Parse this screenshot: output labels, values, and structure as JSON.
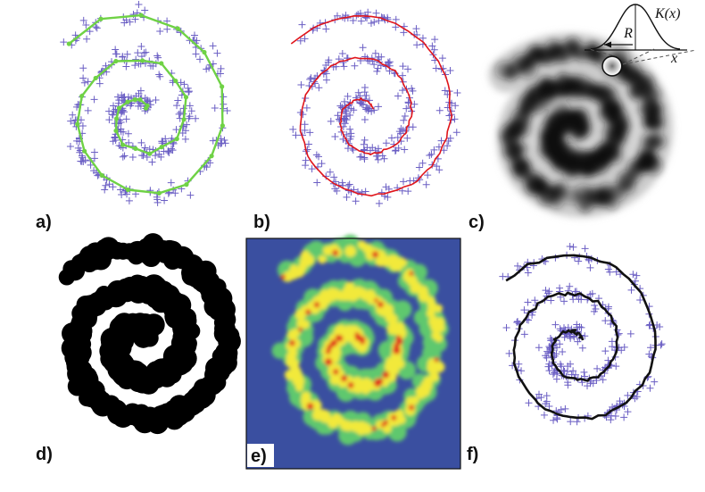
{
  "panels": [
    {
      "id": "a",
      "label": "a)",
      "shows": "point cloud with green polyline"
    },
    {
      "id": "b",
      "label": "b)",
      "shows": "point cloud with red fitted curve"
    },
    {
      "id": "c",
      "label": "c)",
      "shows": "kernel density image"
    },
    {
      "id": "d",
      "label": "d)",
      "shows": "thresholded black region"
    },
    {
      "id": "e",
      "label": "e)",
      "shows": "color-mapped density"
    },
    {
      "id": "f",
      "label": "f)",
      "shows": "point cloud with black skeleton curve"
    }
  ],
  "kernel_inset": {
    "function_label": "K(x)",
    "radius_label": "R",
    "axis_label": "x"
  },
  "colors": {
    "points": "#6b5fc4",
    "polyline": "#6fd245",
    "fitted_curve": "#e0151b",
    "skeleton": "#111111",
    "density_background": "#3a4fa0",
    "density_mid": "#5fc86e",
    "density_high": "#f2e93a",
    "density_peak": "#e0151b"
  }
}
